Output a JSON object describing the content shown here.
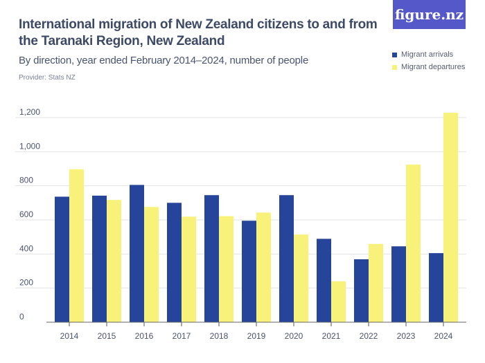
{
  "header": {
    "title": "International migration of New Zealand citizens to and from the Taranaki Region, New Zealand",
    "subtitle": "By direction, year ended February 2014–2024, number of people",
    "provider": "Provider: Stats NZ",
    "logo": "figure.nz"
  },
  "chart_data": {
    "type": "bar",
    "title": "International migration of New Zealand citizens to and from the Taranaki Region, New Zealand",
    "subtitle": "By direction, year ended February 2014–2024, number of people",
    "categories": [
      "2014",
      "2015",
      "2016",
      "2017",
      "2018",
      "2019",
      "2020",
      "2021",
      "2022",
      "2023",
      "2024"
    ],
    "series": [
      {
        "name": "Migrant arrivals",
        "color": "#27449b",
        "values": [
          736,
          742,
          805,
          700,
          745,
          595,
          745,
          489,
          369,
          445,
          405
        ]
      },
      {
        "name": "Migrant departures",
        "color": "#f9f27a",
        "values": [
          897,
          717,
          676,
          619,
          622,
          643,
          514,
          240,
          459,
          924,
          1228
        ]
      }
    ],
    "yticks": [
      "0",
      "200",
      "400",
      "600",
      "800",
      "1,000",
      "1,200"
    ],
    "ylim": [
      0,
      1200
    ],
    "grid": true,
    "legend": "top-right"
  }
}
